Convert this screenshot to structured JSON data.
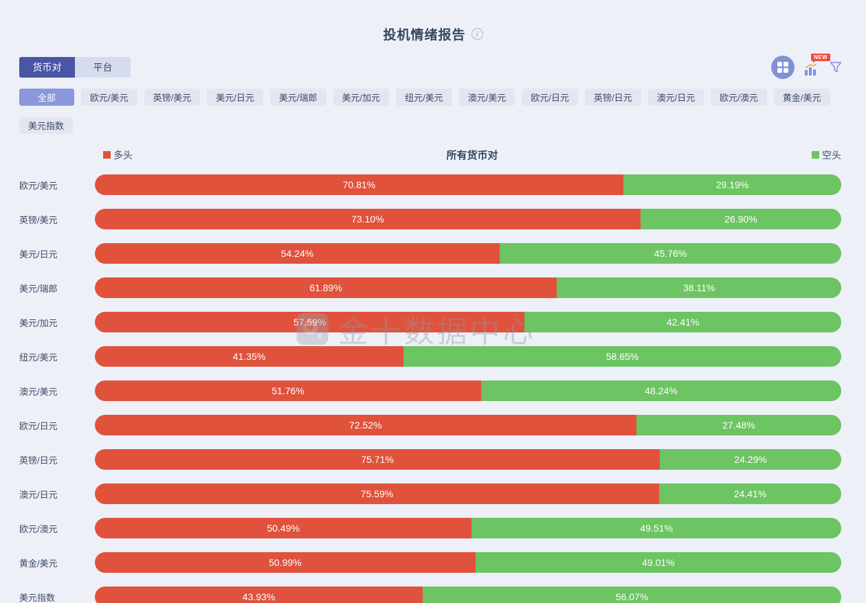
{
  "header": {
    "title": "投机情绪报告"
  },
  "tabs": [
    {
      "label": "货币对",
      "active": true
    },
    {
      "label": "平台",
      "active": false
    }
  ],
  "toolbar": {
    "new_badge": "NEW"
  },
  "filters": {
    "active": "全部",
    "items": [
      "全部",
      "欧元/美元",
      "英镑/美元",
      "美元/日元",
      "美元/瑞郎",
      "美元/加元",
      "纽元/美元",
      "澳元/美元",
      "欧元/日元",
      "英镑/日元",
      "澳元/日元",
      "欧元/澳元",
      "黄金/美元",
      "美元指数"
    ]
  },
  "chart_data": {
    "type": "bar",
    "variant": "horizontal-stacked-100",
    "title": "所有货币对",
    "legend": [
      {
        "name": "多头",
        "color": "#e0523c",
        "position": "left"
      },
      {
        "name": "空头",
        "color": "#6cc462",
        "position": "right"
      }
    ],
    "categories": [
      "欧元/美元",
      "英镑/美元",
      "美元/日元",
      "美元/瑞郎",
      "美元/加元",
      "纽元/美元",
      "澳元/美元",
      "欧元/日元",
      "英镑/日元",
      "澳元/日元",
      "欧元/澳元",
      "黄金/美元",
      "美元指数"
    ],
    "series": [
      {
        "name": "多头",
        "values": [
          70.81,
          73.1,
          54.24,
          61.89,
          57.59,
          41.35,
          51.76,
          72.52,
          75.71,
          75.59,
          50.49,
          50.99,
          43.93
        ]
      },
      {
        "name": "空头",
        "values": [
          29.19,
          26.9,
          45.76,
          38.11,
          42.41,
          58.65,
          48.24,
          27.48,
          24.29,
          24.41,
          49.51,
          49.01,
          56.07
        ]
      }
    ],
    "value_suffix": "%",
    "xlim": [
      0,
      100
    ]
  },
  "watermark": {
    "text": "金十数据中心"
  }
}
